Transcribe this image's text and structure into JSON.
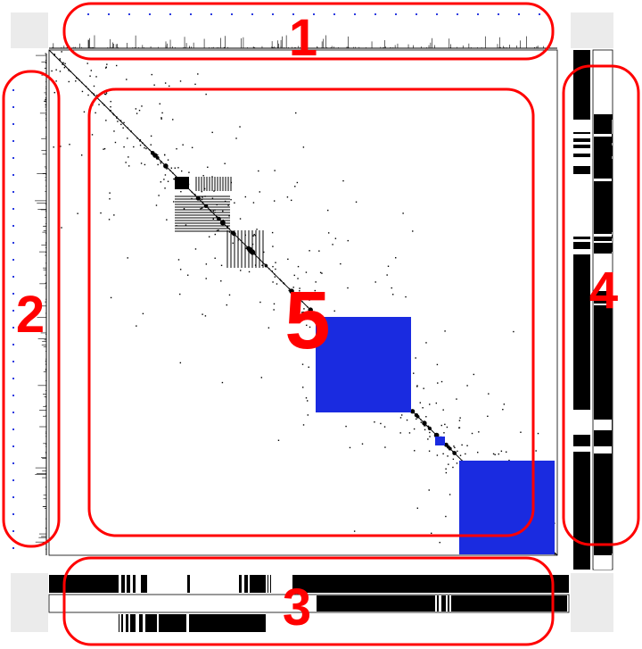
{
  "annotations": [
    {
      "label": "1",
      "target": "top-marginal-histogram"
    },
    {
      "label": "2",
      "target": "left-marginal-histogram"
    },
    {
      "label": "3",
      "target": "bottom-track-bars"
    },
    {
      "label": "4",
      "target": "right-track-bars"
    },
    {
      "label": "5",
      "target": "matrix-plot"
    }
  ],
  "colors": {
    "annotation": "#ff0000",
    "highlight_block": "#1a2be0",
    "marks": "#000000",
    "corner_panel": "#ebebeb",
    "histogram_dot": "#2a3ae0"
  }
}
